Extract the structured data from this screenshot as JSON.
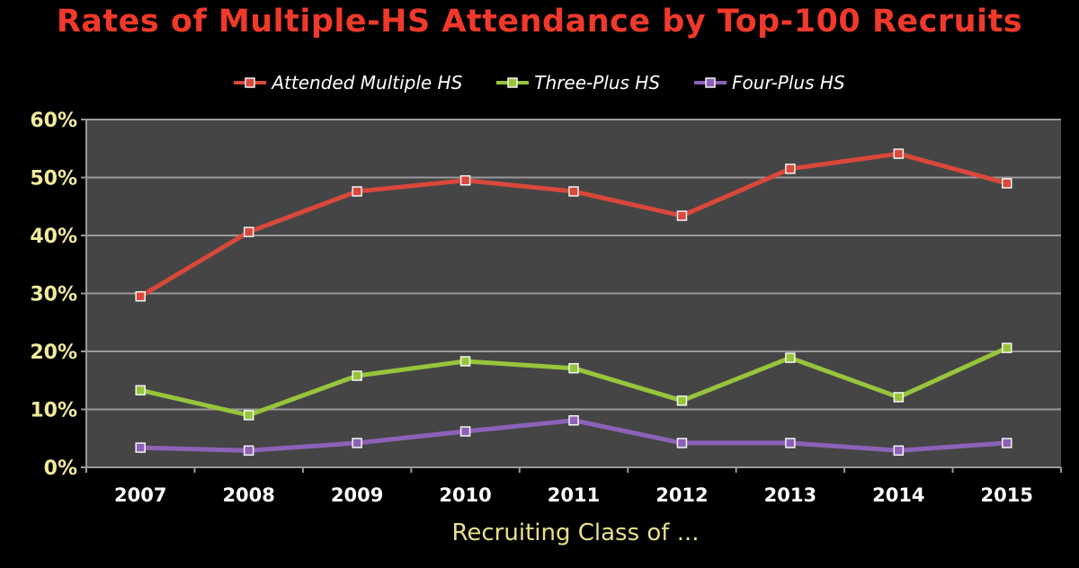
{
  "chart_data": {
    "type": "line",
    "title": "Rates of Multiple-HS Attendance by Top-100 Recruits",
    "xlabel": "Recruiting Class of ...",
    "ylabel": "",
    "categories": [
      "2007",
      "2008",
      "2009",
      "2010",
      "2011",
      "2012",
      "2013",
      "2014",
      "2015"
    ],
    "ylim": [
      0,
      60
    ],
    "yticks": [
      "0%",
      "10%",
      "20%",
      "30%",
      "40%",
      "50%",
      "60%"
    ],
    "grid": true,
    "legend_placement": "top",
    "series": [
      {
        "name": "Attended Multiple HS",
        "color": "#d9483b",
        "values": [
          29.5,
          40.6,
          47.6,
          49.5,
          47.6,
          43.4,
          51.5,
          54.1,
          49.0
        ]
      },
      {
        "name": "Three-Plus HS",
        "color": "#98c43c",
        "values": [
          13.3,
          9.0,
          15.8,
          18.3,
          17.1,
          11.5,
          18.9,
          12.1,
          20.6
        ]
      },
      {
        "name": "Four-Plus HS",
        "color": "#8c62b8",
        "values": [
          3.4,
          2.9,
          4.2,
          6.2,
          8.1,
          4.2,
          4.2,
          2.9,
          4.2
        ]
      }
    ],
    "colors": {
      "plot_background": "#454545",
      "gridline": "#9a9a9a",
      "tick_label": "#f2eb9a",
      "title": "#f0392b"
    }
  }
}
